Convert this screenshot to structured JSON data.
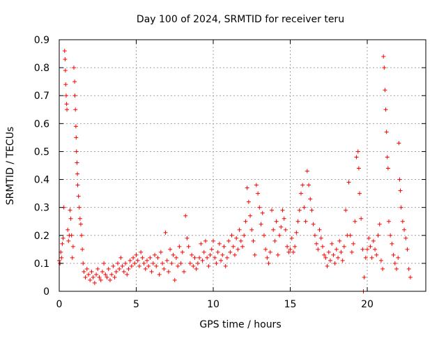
{
  "chart_data": {
    "type": "scatter",
    "title": "Day 100 of 2024, SRMTID for receiver teru",
    "xlabel": "GPS time / hours",
    "ylabel": "SRMTID / TECUs",
    "xlim": [
      0,
      23.8
    ],
    "ylim": [
      0,
      0.9
    ],
    "x_ticks": [
      0,
      5,
      10,
      15,
      20
    ],
    "y_ticks": [
      0,
      0.1,
      0.2,
      0.3,
      0.4,
      0.5,
      0.6,
      0.7,
      0.8,
      0.9
    ],
    "x_tick_labels": [
      "0",
      "5",
      "10",
      "15",
      "20"
    ],
    "y_tick_labels": [
      "0",
      "0.1",
      "0.2",
      "0.3",
      "0.4",
      "0.5",
      "0.6",
      "0.7",
      "0.8",
      "0.9"
    ],
    "grid": true,
    "marker": "+",
    "color": "#ff0000",
    "series": [
      {
        "name": "SRMTID",
        "points": [
          [
            0.0,
            0.11
          ],
          [
            0.05,
            0.1
          ],
          [
            0.1,
            0.14
          ],
          [
            0.15,
            0.12
          ],
          [
            0.2,
            0.17
          ],
          [
            0.25,
            0.19
          ],
          [
            0.3,
            0.3
          ],
          [
            0.35,
            0.86
          ],
          [
            0.38,
            0.83
          ],
          [
            0.4,
            0.79
          ],
          [
            0.42,
            0.74
          ],
          [
            0.45,
            0.7
          ],
          [
            0.48,
            0.67
          ],
          [
            0.5,
            0.65
          ],
          [
            0.55,
            0.22
          ],
          [
            0.6,
            0.18
          ],
          [
            0.65,
            0.2
          ],
          [
            0.7,
            0.29
          ],
          [
            0.75,
            0.26
          ],
          [
            0.8,
            0.2
          ],
          [
            0.85,
            0.12
          ],
          [
            0.9,
            0.16
          ],
          [
            0.95,
            0.8
          ],
          [
            1.0,
            0.75
          ],
          [
            1.02,
            0.7
          ],
          [
            1.05,
            0.65
          ],
          [
            1.08,
            0.59
          ],
          [
            1.1,
            0.55
          ],
          [
            1.12,
            0.5
          ],
          [
            1.15,
            0.46
          ],
          [
            1.18,
            0.42
          ],
          [
            1.2,
            0.38
          ],
          [
            1.25,
            0.34
          ],
          [
            1.3,
            0.3
          ],
          [
            1.35,
            0.26
          ],
          [
            1.4,
            0.24
          ],
          [
            1.45,
            0.2
          ],
          [
            1.5,
            0.15
          ],
          [
            1.55,
            0.1
          ],
          [
            1.6,
            0.07
          ],
          [
            1.7,
            0.05
          ],
          [
            1.8,
            0.08
          ],
          [
            1.9,
            0.06
          ],
          [
            2.0,
            0.04
          ],
          [
            2.1,
            0.07
          ],
          [
            2.2,
            0.05
          ],
          [
            2.3,
            0.03
          ],
          [
            2.4,
            0.06
          ],
          [
            2.5,
            0.08
          ],
          [
            2.6,
            0.05
          ],
          [
            2.7,
            0.04
          ],
          [
            2.8,
            0.07
          ],
          [
            2.9,
            0.1
          ],
          [
            3.0,
            0.06
          ],
          [
            3.1,
            0.05
          ],
          [
            3.2,
            0.08
          ],
          [
            3.3,
            0.04
          ],
          [
            3.4,
            0.06
          ],
          [
            3.5,
            0.09
          ],
          [
            3.6,
            0.05
          ],
          [
            3.7,
            0.07
          ],
          [
            3.8,
            0.1
          ],
          [
            3.9,
            0.08
          ],
          [
            4.0,
            0.12
          ],
          [
            4.1,
            0.09
          ],
          [
            4.2,
            0.07
          ],
          [
            4.3,
            0.1
          ],
          [
            4.4,
            0.06
          ],
          [
            4.5,
            0.08
          ],
          [
            4.6,
            0.11
          ],
          [
            4.7,
            0.09
          ],
          [
            4.8,
            0.12
          ],
          [
            4.9,
            0.1
          ],
          [
            5.0,
            0.13
          ],
          [
            5.1,
            0.11
          ],
          [
            5.2,
            0.09
          ],
          [
            5.3,
            0.14
          ],
          [
            5.4,
            0.12
          ],
          [
            5.5,
            0.1
          ],
          [
            5.6,
            0.08
          ],
          [
            5.7,
            0.11
          ],
          [
            5.8,
            0.09
          ],
          [
            5.9,
            0.12
          ],
          [
            6.0,
            0.07
          ],
          [
            6.1,
            0.1
          ],
          [
            6.2,
            0.13
          ],
          [
            6.3,
            0.09
          ],
          [
            6.4,
            0.12
          ],
          [
            6.5,
            0.06
          ],
          [
            6.6,
            0.14
          ],
          [
            6.7,
            0.1
          ],
          [
            6.8,
            0.08
          ],
          [
            6.9,
            0.21
          ],
          [
            7.0,
            0.11
          ],
          [
            7.1,
            0.07
          ],
          [
            7.2,
            0.15
          ],
          [
            7.3,
            0.1
          ],
          [
            7.4,
            0.13
          ],
          [
            7.5,
            0.04
          ],
          [
            7.6,
            0.12
          ],
          [
            7.7,
            0.09
          ],
          [
            7.8,
            0.16
          ],
          [
            7.9,
            0.1
          ],
          [
            8.0,
            0.14
          ],
          [
            8.1,
            0.07
          ],
          [
            8.2,
            0.27
          ],
          [
            8.3,
            0.19
          ],
          [
            8.4,
            0.16
          ],
          [
            8.5,
            0.1
          ],
          [
            8.6,
            0.13
          ],
          [
            8.7,
            0.09
          ],
          [
            8.8,
            0.12
          ],
          [
            8.9,
            0.08
          ],
          [
            9.0,
            0.1
          ],
          [
            9.1,
            0.12
          ],
          [
            9.2,
            0.17
          ],
          [
            9.3,
            0.11
          ],
          [
            9.4,
            0.14
          ],
          [
            9.5,
            0.18
          ],
          [
            9.6,
            0.12
          ],
          [
            9.7,
            0.09
          ],
          [
            9.8,
            0.13
          ],
          [
            9.9,
            0.15
          ],
          [
            10.0,
            0.18
          ],
          [
            10.1,
            0.12
          ],
          [
            10.2,
            0.1
          ],
          [
            10.3,
            0.14
          ],
          [
            10.4,
            0.17
          ],
          [
            10.5,
            0.11
          ],
          [
            10.6,
            0.13
          ],
          [
            10.7,
            0.16
          ],
          [
            10.8,
            0.09
          ],
          [
            10.9,
            0.12
          ],
          [
            11.0,
            0.18
          ],
          [
            11.1,
            0.14
          ],
          [
            11.2,
            0.2
          ],
          [
            11.3,
            0.16
          ],
          [
            11.4,
            0.13
          ],
          [
            11.5,
            0.19
          ],
          [
            11.6,
            0.15
          ],
          [
            11.7,
            0.22
          ],
          [
            11.8,
            0.18
          ],
          [
            11.9,
            0.16
          ],
          [
            12.0,
            0.2
          ],
          [
            12.1,
            0.25
          ],
          [
            12.2,
            0.37
          ],
          [
            12.3,
            0.32
          ],
          [
            12.4,
            0.27
          ],
          [
            12.5,
            0.22
          ],
          [
            12.6,
            0.18
          ],
          [
            12.7,
            0.13
          ],
          [
            12.8,
            0.38
          ],
          [
            12.9,
            0.35
          ],
          [
            13.0,
            0.3
          ],
          [
            13.1,
            0.24
          ],
          [
            13.2,
            0.28
          ],
          [
            13.3,
            0.2
          ],
          [
            13.4,
            0.15
          ],
          [
            13.5,
            0.12
          ],
          [
            13.6,
            0.1
          ],
          [
            13.7,
            0.14
          ],
          [
            13.8,
            0.29
          ],
          [
            13.9,
            0.22
          ],
          [
            14.0,
            0.18
          ],
          [
            14.1,
            0.25
          ],
          [
            14.2,
            0.13
          ],
          [
            14.3,
            0.2
          ],
          [
            14.4,
            0.23
          ],
          [
            14.5,
            0.29
          ],
          [
            14.6,
            0.26
          ],
          [
            14.7,
            0.22
          ],
          [
            14.8,
            0.16
          ],
          [
            14.9,
            0.14
          ],
          [
            15.0,
            0.15
          ],
          [
            15.1,
            0.19
          ],
          [
            15.2,
            0.14
          ],
          [
            15.3,
            0.16
          ],
          [
            15.4,
            0.21
          ],
          [
            15.5,
            0.25
          ],
          [
            15.6,
            0.29
          ],
          [
            15.7,
            0.35
          ],
          [
            15.8,
            0.38
          ],
          [
            15.9,
            0.3
          ],
          [
            16.0,
            0.25
          ],
          [
            16.1,
            0.43
          ],
          [
            16.2,
            0.38
          ],
          [
            16.3,
            0.33
          ],
          [
            16.4,
            0.29
          ],
          [
            16.5,
            0.24
          ],
          [
            16.6,
            0.2
          ],
          [
            16.7,
            0.17
          ],
          [
            16.8,
            0.15
          ],
          [
            16.9,
            0.22
          ],
          [
            17.0,
            0.19
          ],
          [
            17.1,
            0.16
          ],
          [
            17.2,
            0.13
          ],
          [
            17.3,
            0.12
          ],
          [
            17.4,
            0.09
          ],
          [
            17.5,
            0.14
          ],
          [
            17.6,
            0.11
          ],
          [
            17.7,
            0.17
          ],
          [
            17.8,
            0.13
          ],
          [
            17.9,
            0.1
          ],
          [
            18.0,
            0.15
          ],
          [
            18.1,
            0.12
          ],
          [
            18.2,
            0.18
          ],
          [
            18.3,
            0.14
          ],
          [
            18.4,
            0.11
          ],
          [
            18.5,
            0.16
          ],
          [
            18.6,
            0.29
          ],
          [
            18.7,
            0.2
          ],
          [
            18.8,
            0.39
          ],
          [
            18.9,
            0.2
          ],
          [
            19.0,
            0.14
          ],
          [
            19.1,
            0.17
          ],
          [
            19.2,
            0.25
          ],
          [
            19.3,
            0.48
          ],
          [
            19.4,
            0.5
          ],
          [
            19.45,
            0.44
          ],
          [
            19.5,
            0.35
          ],
          [
            19.6,
            0.26
          ],
          [
            19.7,
            0.15
          ],
          [
            19.75,
            0.0
          ],
          [
            19.8,
            0.05
          ],
          [
            19.9,
            0.12
          ],
          [
            20.0,
            0.15
          ],
          [
            20.1,
            0.19
          ],
          [
            20.2,
            0.16
          ],
          [
            20.3,
            0.12
          ],
          [
            20.4,
            0.18
          ],
          [
            20.5,
            0.15
          ],
          [
            20.6,
            0.13
          ],
          [
            20.7,
            0.2
          ],
          [
            20.8,
            0.24
          ],
          [
            20.9,
            0.11
          ],
          [
            21.0,
            0.08
          ],
          [
            21.05,
            0.84
          ],
          [
            21.1,
            0.8
          ],
          [
            21.15,
            0.72
          ],
          [
            21.2,
            0.65
          ],
          [
            21.25,
            0.57
          ],
          [
            21.3,
            0.48
          ],
          [
            21.35,
            0.44
          ],
          [
            21.4,
            0.25
          ],
          [
            21.5,
            0.2
          ],
          [
            21.6,
            0.17
          ],
          [
            21.7,
            0.13
          ],
          [
            21.8,
            0.1
          ],
          [
            21.9,
            0.08
          ],
          [
            22.0,
            0.12
          ],
          [
            22.05,
            0.53
          ],
          [
            22.1,
            0.4
          ],
          [
            22.15,
            0.36
          ],
          [
            22.2,
            0.3
          ],
          [
            22.3,
            0.25
          ],
          [
            22.4,
            0.22
          ],
          [
            22.5,
            0.19
          ],
          [
            22.6,
            0.15
          ],
          [
            22.7,
            0.08
          ],
          [
            22.8,
            0.05
          ]
        ]
      }
    ]
  }
}
